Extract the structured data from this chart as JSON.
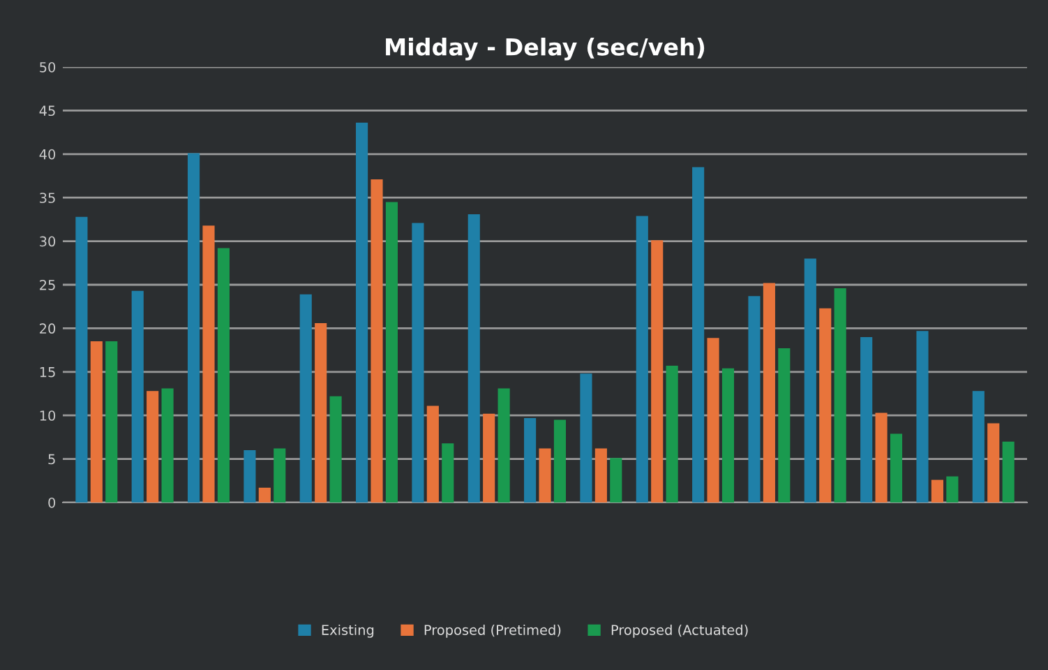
{
  "chart_data": {
    "type": "bar",
    "title": "Midday - Delay (sec/veh)",
    "categories": [
      null,
      null,
      null,
      null,
      null,
      null,
      null,
      null,
      null,
      null,
      null,
      null,
      null,
      null,
      null,
      null,
      null
    ],
    "series": [
      {
        "name": "Existing",
        "color": "#1f80a8",
        "values": [
          32.8,
          24.3,
          40.1,
          6,
          23.9,
          43.6,
          32.1,
          33.1,
          9.7,
          14.8,
          32.9,
          38.5,
          23.7,
          28,
          19,
          19.7,
          12.8
        ]
      },
      {
        "name": "Proposed (Pretimed)",
        "color": "#e8743b",
        "values": [
          18.5,
          12.8,
          31.8,
          1.7,
          20.6,
          37.1,
          11.1,
          10.2,
          6.2,
          6.2,
          30.1,
          18.9,
          25.2,
          22.3,
          10.3,
          2.6,
          9.1
        ]
      },
      {
        "name": "Proposed (Actuated)",
        "color": "#1a9a4f",
        "values": [
          18.5,
          13.1,
          29.2,
          6.2,
          12.2,
          34.5,
          6.8,
          13.1,
          9.5,
          5.1,
          15.7,
          15.4,
          17.7,
          24.6,
          7.9,
          3,
          7
        ]
      }
    ],
    "ylim": [
      0,
      50
    ],
    "yticks": [
      0,
      5,
      10,
      15,
      20,
      25,
      30,
      35,
      40,
      45,
      50
    ],
    "grid": "y",
    "legend": "bottom"
  }
}
